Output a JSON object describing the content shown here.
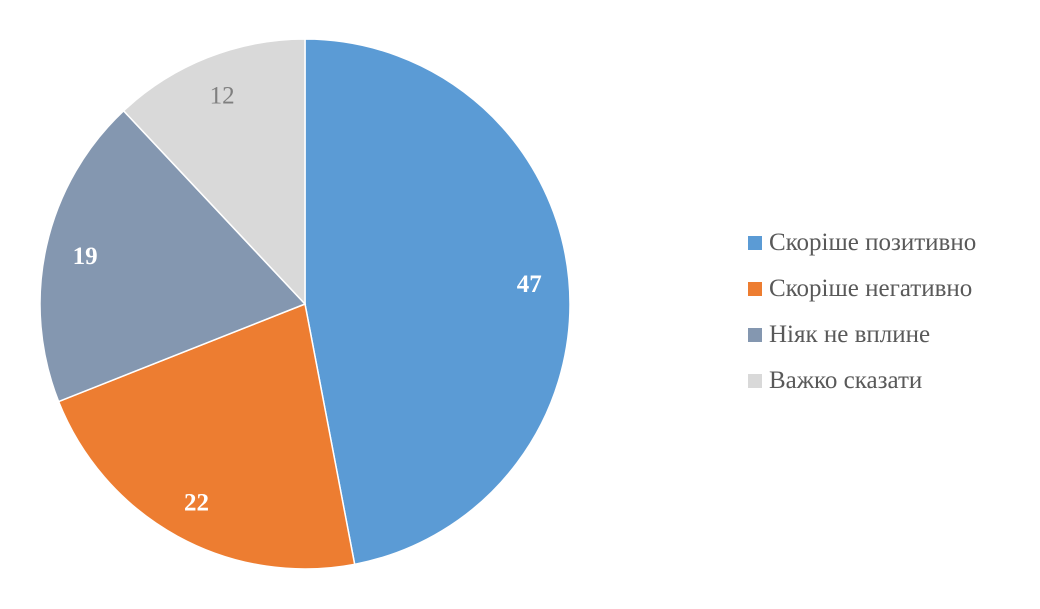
{
  "chart_data": {
    "type": "pie",
    "categories": [
      "Скоріше позитивно",
      "Скоріше негативно",
      "Ніяк не вплине",
      "Важко сказати"
    ],
    "values": [
      47,
      22,
      19,
      12
    ],
    "colors": [
      "#5B9BD5",
      "#ED7D31",
      "#8497B0",
      "#D9D9D9"
    ],
    "label_colors": [
      "#FFFFFF",
      "#FFFFFF",
      "#FFFFFF",
      "#7F7F7F"
    ],
    "data_labels": [
      "47",
      "22",
      "19",
      "12"
    ],
    "legend_position": "right",
    "start_angle": "top, clockwise"
  }
}
